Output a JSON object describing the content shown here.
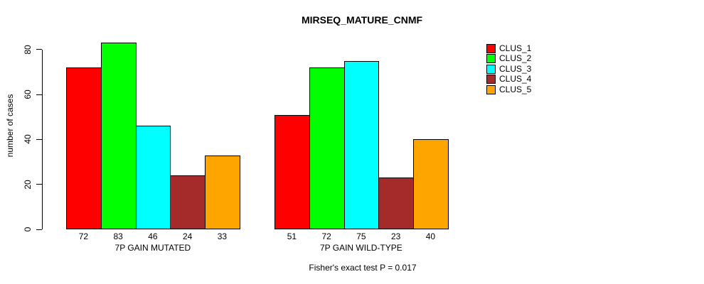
{
  "title": "MIRSEQ_MATURE_CNMF",
  "ylabel": "number of cases",
  "caption": "Fisher's exact test P = 0.017",
  "chart_data": {
    "type": "bar",
    "title": "MIRSEQ_MATURE_CNMF",
    "ylabel": "number of cases",
    "xlabel": "",
    "categories": [
      "7P GAIN MUTATED",
      "7P GAIN WILD-TYPE"
    ],
    "series": [
      {
        "name": "CLUS_1",
        "color": "#FF0000",
        "values": [
          72,
          51
        ]
      },
      {
        "name": "CLUS_2",
        "color": "#00FF00",
        "values": [
          83,
          72
        ]
      },
      {
        "name": "CLUS_3",
        "color": "#00FFFF",
        "values": [
          46,
          75
        ]
      },
      {
        "name": "CLUS_4",
        "color": "#A52A2A",
        "values": [
          24,
          23
        ]
      },
      {
        "name": "CLUS_5",
        "color": "#FFA500",
        "values": [
          33,
          40
        ]
      }
    ],
    "yticks": [
      0,
      20,
      40,
      60,
      80
    ],
    "ylim": [
      0,
      87
    ],
    "grid": false,
    "bar_value_labels_shown": true,
    "legend_position": "right",
    "annotation": "Fisher's exact test P = 0.017"
  }
}
